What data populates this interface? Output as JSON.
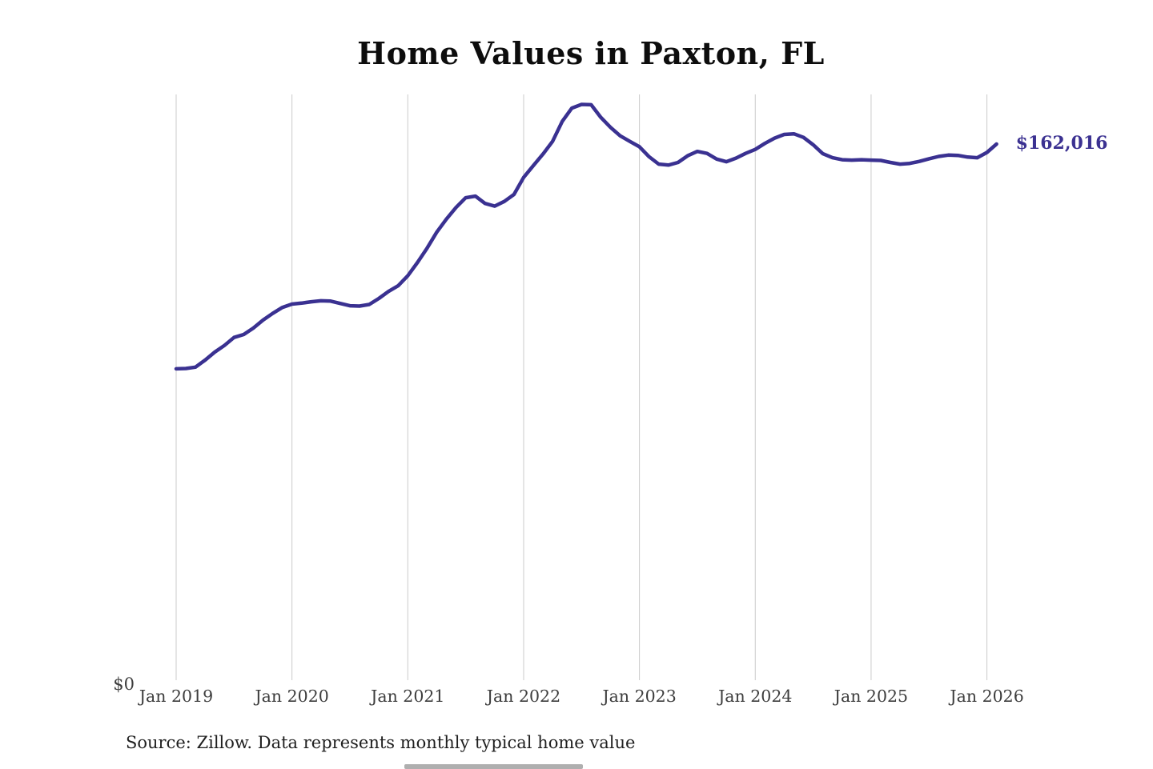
{
  "title": "Home Values in Paxton, FL",
  "annotation": {
    "current_value_label": "$162,016"
  },
  "y_axis": {
    "zero_label": "$0"
  },
  "x_axis": {
    "tick_labels": [
      "Jan 2019",
      "Jan 2020",
      "Jan 2021",
      "Jan 2022",
      "Jan 2023",
      "Jan 2024",
      "Jan 2025",
      "Jan 2026"
    ]
  },
  "source_note": "Source: Zillow. Data represents monthly typical home value",
  "colors": {
    "line": "#3a3191",
    "annotation_text": "#3b3191",
    "grid": "#cbcbcb",
    "title_text": "#0d0d0d",
    "axis_text": "#3d3d3d",
    "source_text": "#1f1f1f",
    "background": "#ffffff"
  },
  "chart_data": {
    "type": "line",
    "title": "Home Values in Paxton, FL",
    "series_name": "Monthly typical home value (Zillow)",
    "unit": "USD",
    "frequency": "monthly",
    "start_month": "2019-01",
    "end_month": "2026-02",
    "ylim": [
      0,
      176000
    ],
    "grid": "vertical-yearly",
    "legend": "none",
    "x_tick_labels": [
      "Jan 2019",
      "Jan 2020",
      "Jan 2021",
      "Jan 2022",
      "Jan 2023",
      "Jan 2024",
      "Jan 2025",
      "Jan 2026"
    ],
    "y_tick_labels": [
      "$0"
    ],
    "last_value": 162016,
    "values": [
      94600,
      94700,
      95100,
      97200,
      99600,
      101600,
      104000,
      104900,
      106800,
      109200,
      111200,
      113000,
      114000,
      114300,
      114700,
      115000,
      114900,
      114200,
      113500,
      113400,
      113900,
      115700,
      117800,
      119500,
      122500,
      126500,
      130800,
      135600,
      139500,
      143000,
      145900,
      146400,
      144200,
      143400,
      144800,
      146900,
      152000,
      155500,
      159000,
      162800,
      168800,
      172800,
      173900,
      173800,
      170000,
      167000,
      164500,
      162800,
      161200,
      158200,
      156000,
      155700,
      156500,
      158500,
      159800,
      159200,
      157500,
      156700,
      157800,
      159200,
      160400,
      162200,
      163800,
      164900,
      165100,
      164000,
      161800,
      159100,
      157900,
      157300,
      157200,
      157300,
      157200,
      157100,
      156500,
      156000,
      156200,
      156800,
      157600,
      158300,
      158700,
      158600,
      158100,
      157900,
      159500,
      162016
    ]
  }
}
